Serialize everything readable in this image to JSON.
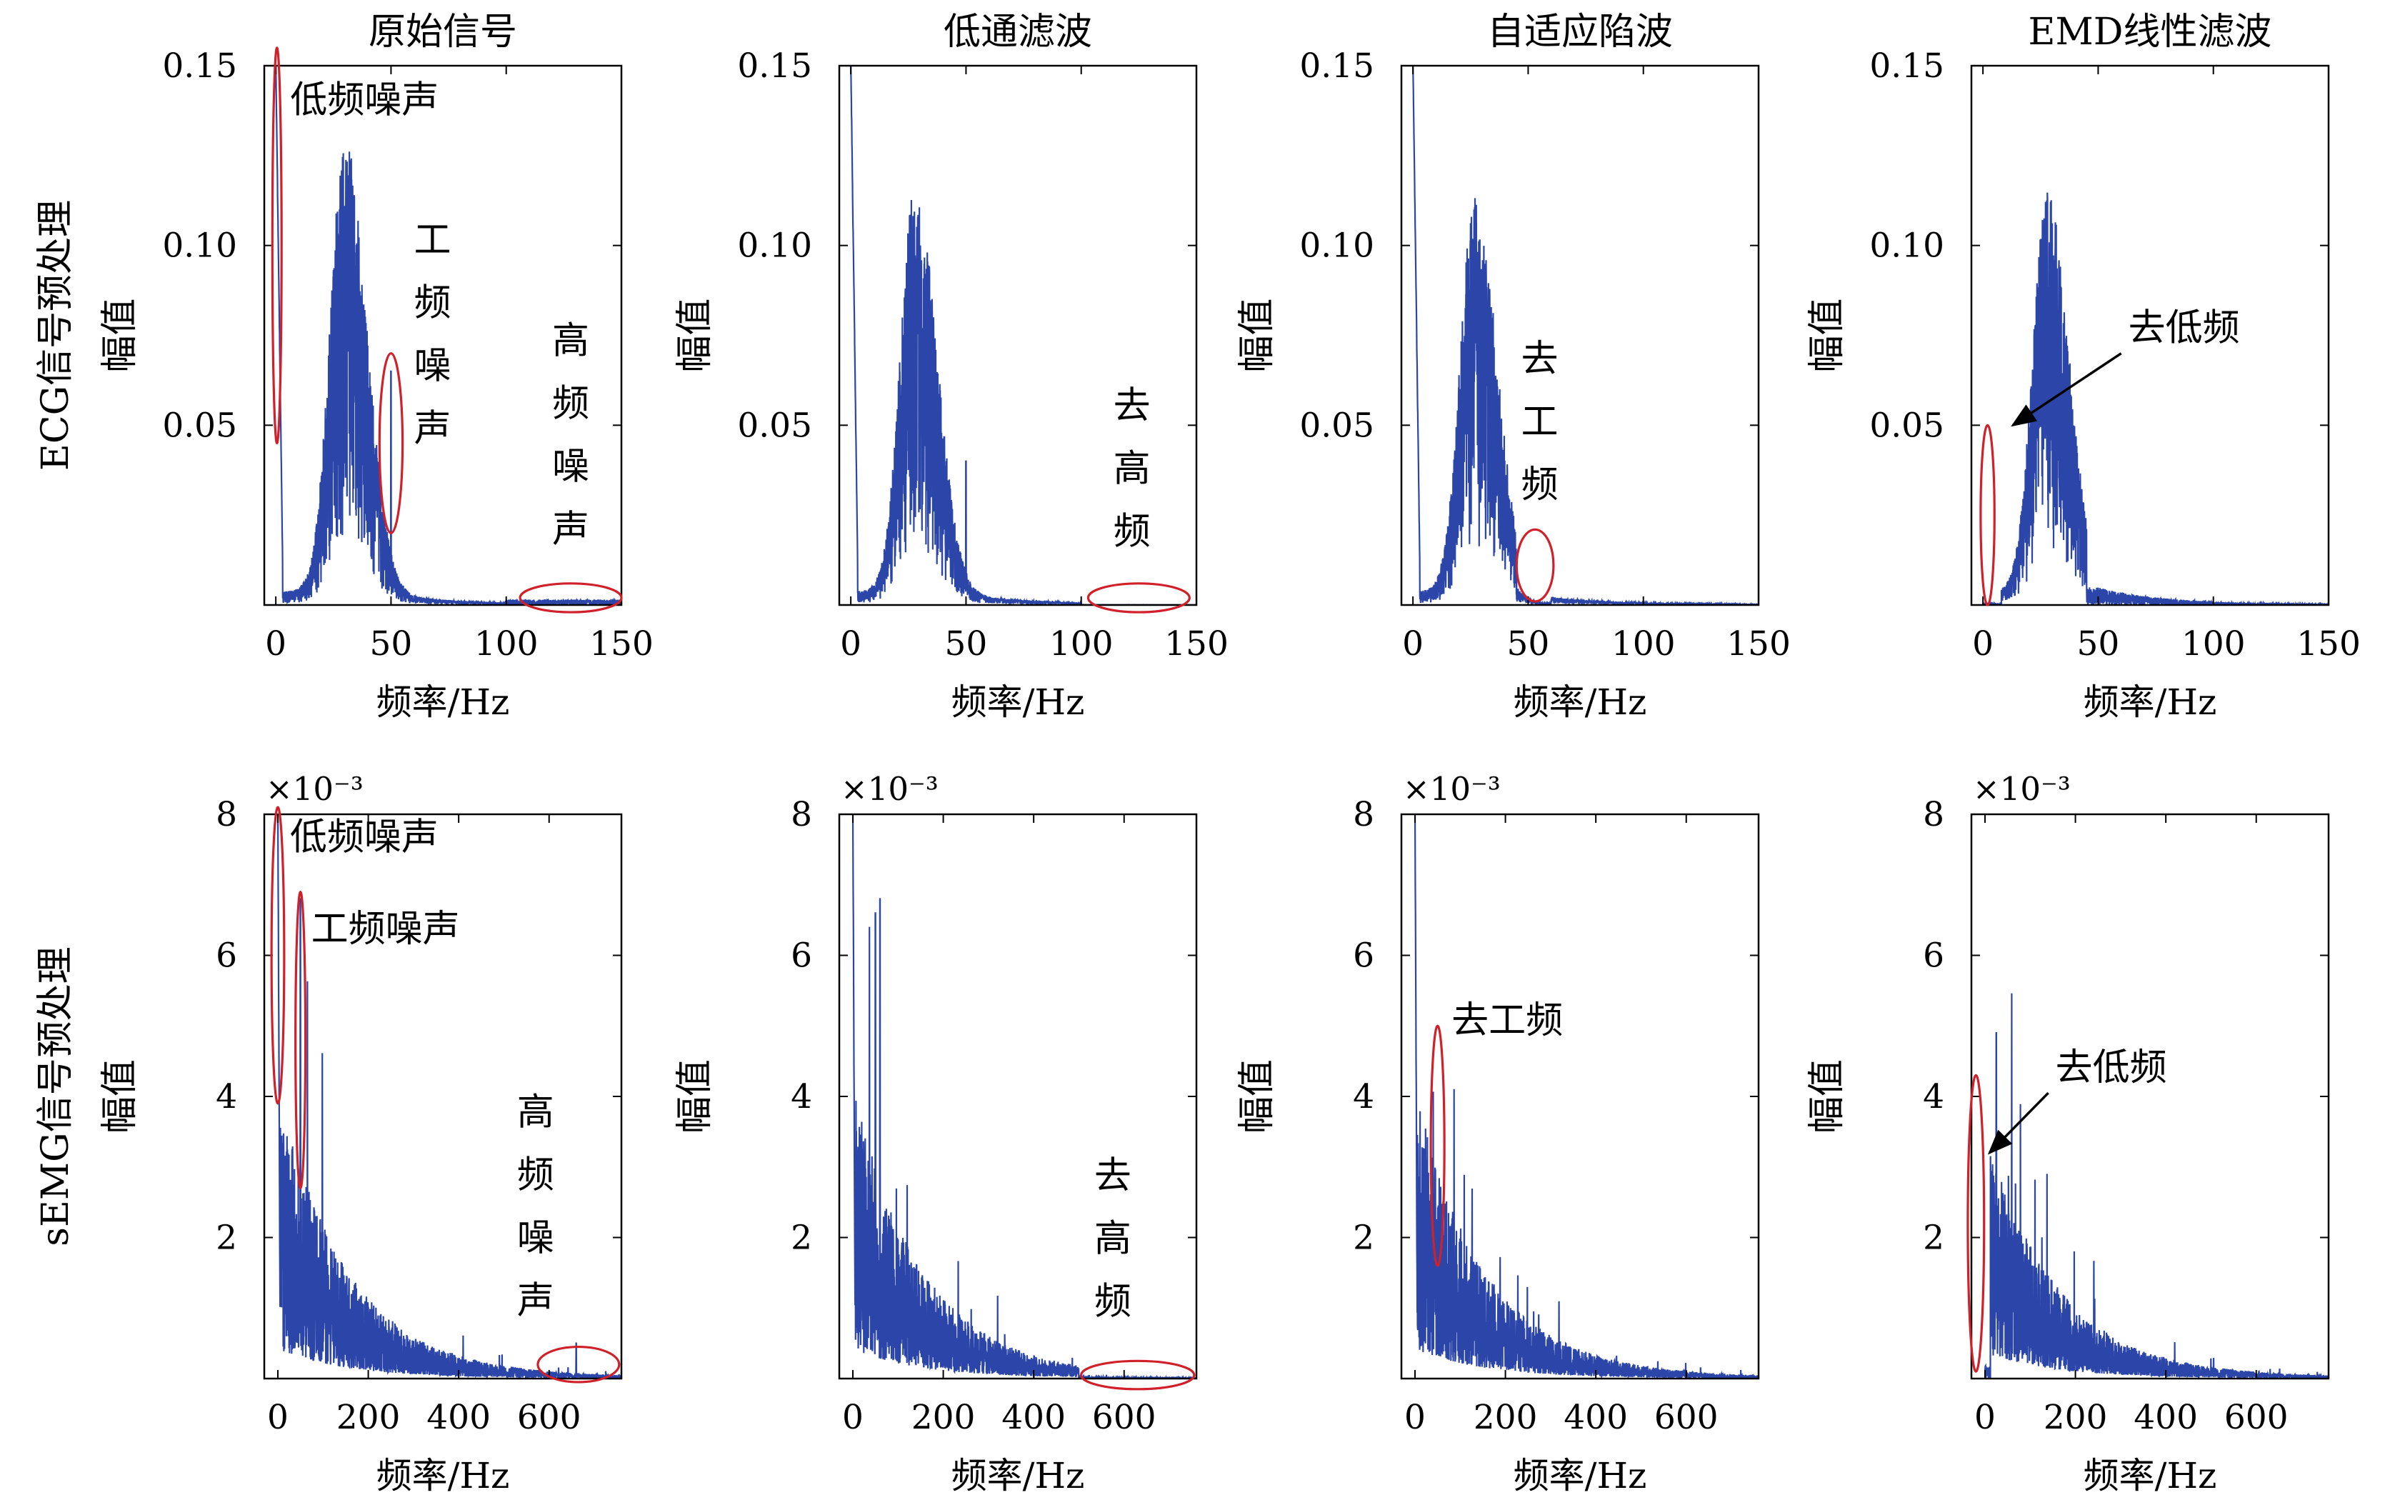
{
  "row_labels": [
    "ECG信号预处理",
    "sEMG信号预处理"
  ],
  "col_titles": [
    "原始信号",
    "低通滤波",
    "自适应陷波",
    "EMD线性滤波"
  ],
  "colors": {
    "signal": "#2b46a8",
    "annotation": "#d0202a",
    "axis": "#000000",
    "arrow": "#000000"
  },
  "chart_data": [
    {
      "type": "line",
      "row": 0,
      "col": 0,
      "title": "原始信号",
      "xlabel": "频率/Hz",
      "ylabel": "幅值",
      "xlim": [
        -5,
        150
      ],
      "ylim": [
        0,
        0.15
      ],
      "xticks": [
        0,
        50,
        100,
        150
      ],
      "yticks": [
        0.05,
        0.1,
        0.15
      ],
      "ytick_labels": [
        "0.05",
        "0.10",
        "0.15"
      ],
      "peak_hz": 30,
      "peak_amp": 0.125,
      "low_freq_amp": 0.15,
      "powerline_hz": 50,
      "powerline_amp": 0.065,
      "annotations": [
        {
          "kind": "ellipse",
          "text": "低频噪声",
          "cx": 0.5,
          "cy": 0.1,
          "rx": 2,
          "ry": 0.055
        },
        {
          "kind": "ellipse",
          "text": "工频噪声",
          "cx": 50,
          "cy": 0.045,
          "rx": 5,
          "ry": 0.025,
          "vertical": true
        },
        {
          "kind": "ellipse",
          "text": "高频噪声",
          "cx": 128,
          "cy": 0.002,
          "rx": 22,
          "ry": 0.004,
          "vertical": true
        }
      ]
    },
    {
      "type": "line",
      "row": 0,
      "col": 1,
      "title": "低通滤波",
      "xlabel": "频率/Hz",
      "ylabel": "幅值",
      "xlim": [
        -5,
        150
      ],
      "ylim": [
        0,
        0.15
      ],
      "xticks": [
        0,
        50,
        100,
        150
      ],
      "yticks": [
        0.05,
        0.1,
        0.15
      ],
      "ytick_labels": [
        "0.05",
        "0.10",
        "0.15"
      ],
      "peak_hz": 28,
      "peak_amp": 0.112,
      "low_freq_amp": 0.15,
      "powerline_hz": 50,
      "powerline_amp": 0.04,
      "annotations": [
        {
          "kind": "ellipse",
          "text": "去高频",
          "cx": 125,
          "cy": 0.002,
          "rx": 22,
          "ry": 0.004,
          "vertical": true
        }
      ]
    },
    {
      "type": "line",
      "row": 0,
      "col": 2,
      "title": "自适应陷波",
      "xlabel": "频率/Hz",
      "ylabel": "幅值",
      "xlim": [
        -5,
        150
      ],
      "ylim": [
        0,
        0.15
      ],
      "xticks": [
        0,
        50,
        100,
        150
      ],
      "yticks": [
        0.05,
        0.1,
        0.15
      ],
      "ytick_labels": [
        "0.05",
        "0.10",
        "0.15"
      ],
      "peak_hz": 27,
      "peak_amp": 0.11,
      "low_freq_amp": 0.15,
      "powerline_hz": null,
      "powerline_amp": 0,
      "annotations": [
        {
          "kind": "ellipse",
          "text": "去工频",
          "cx": 53,
          "cy": 0.011,
          "rx": 8,
          "ry": 0.01,
          "vertical": true
        }
      ]
    },
    {
      "type": "line",
      "row": 0,
      "col": 3,
      "title": "EMD线性滤波",
      "xlabel": "频率/Hz",
      "ylabel": "幅值",
      "xlim": [
        -5,
        150
      ],
      "ylim": [
        0,
        0.15
      ],
      "xticks": [
        0,
        50,
        100,
        150
      ],
      "yticks": [
        0.05,
        0.1,
        0.15
      ],
      "ytick_labels": [
        "0.05",
        "0.10",
        "0.15"
      ],
      "peak_hz": 28,
      "peak_amp": 0.11,
      "low_freq_amp": 0.0,
      "powerline_hz": null,
      "powerline_amp": 0,
      "annotations": [
        {
          "kind": "ellipse",
          "text": "",
          "cx": 2,
          "cy": 0.025,
          "rx": 3,
          "ry": 0.025
        },
        {
          "kind": "arrow",
          "text": "去低频",
          "x1": 60,
          "y1": 0.07,
          "x2": 13,
          "y2": 0.05
        }
      ]
    },
    {
      "type": "line",
      "row": 1,
      "col": 0,
      "title": "",
      "xlabel": "频率/Hz",
      "ylabel": "幅值",
      "xlim": [
        -30,
        760
      ],
      "ylim": [
        0,
        8
      ],
      "xticks": [
        0,
        200,
        400,
        600
      ],
      "yticks": [
        2,
        4,
        6,
        8
      ],
      "ytick_labels": [
        "2",
        "4",
        "6",
        "8"
      ],
      "y_exponent": "×10⁻³",
      "decay_start": 4,
      "low_freq_amp": 8,
      "powerline_hz": 50,
      "powerline_amp": 6.8,
      "spike_hz": 660,
      "spike_amp": 0.5,
      "annotations": [
        {
          "kind": "ellipse",
          "text": "低频噪声",
          "cx": 0,
          "cy": 6,
          "rx": 14,
          "ry": 2.1
        },
        {
          "kind": "ellipse",
          "text": "工频噪声",
          "cx": 50,
          "cy": 4.8,
          "rx": 11,
          "ry": 2.1
        },
        {
          "kind": "ellipse",
          "text": "高频噪声",
          "cx": 665,
          "cy": 0.2,
          "rx": 90,
          "ry": 0.25,
          "vertical": true
        }
      ]
    },
    {
      "type": "line",
      "row": 1,
      "col": 1,
      "title": "",
      "xlabel": "频率/Hz",
      "ylabel": "幅值",
      "xlim": [
        -30,
        760
      ],
      "ylim": [
        0,
        8
      ],
      "xticks": [
        0,
        200,
        400,
        600
      ],
      "yticks": [
        2,
        4,
        6,
        8
      ],
      "ytick_labels": [
        "2",
        "4",
        "6",
        "8"
      ],
      "y_exponent": "×10⁻³",
      "decay_start": 4,
      "low_freq_amp": 8,
      "powerline_hz": 50,
      "powerline_amp": 6.6,
      "spike_hz": null,
      "spike_amp": 0,
      "annotations": [
        {
          "kind": "ellipse",
          "text": "去高频",
          "cx": 630,
          "cy": 0.05,
          "rx": 125,
          "ry": 0.2,
          "vertical": true
        }
      ]
    },
    {
      "type": "line",
      "row": 1,
      "col": 2,
      "title": "",
      "xlabel": "频率/Hz",
      "ylabel": "幅值",
      "xlim": [
        -30,
        760
      ],
      "ylim": [
        0,
        8
      ],
      "xticks": [
        0,
        200,
        400,
        600
      ],
      "yticks": [
        2,
        4,
        6,
        8
      ],
      "ytick_labels": [
        "2",
        "4",
        "6",
        "8"
      ],
      "y_exponent": "×10⁻³",
      "decay_start": 4,
      "low_freq_amp": 8,
      "powerline_hz": null,
      "powerline_amp": 0,
      "spike_hz": null,
      "spike_amp": 0,
      "annotations": [
        {
          "kind": "ellipse",
          "text": "去工频",
          "cx": 50,
          "cy": 3.3,
          "rx": 15,
          "ry": 1.7
        }
      ]
    },
    {
      "type": "line",
      "row": 1,
      "col": 3,
      "title": "",
      "xlabel": "频率/Hz",
      "ylabel": "幅值",
      "xlim": [
        -30,
        760
      ],
      "ylim": [
        0,
        8
      ],
      "xticks": [
        0,
        200,
        400,
        600
      ],
      "yticks": [
        2,
        4,
        6,
        8
      ],
      "ytick_labels": [
        "2",
        "4",
        "6",
        "8"
      ],
      "y_exponent": "×10⁻³",
      "decay_start": 3.5,
      "low_freq_amp": 0,
      "powerline_hz": null,
      "powerline_amp": 0,
      "spike_hz": null,
      "spike_amp": 0,
      "annotations": [
        {
          "kind": "ellipse",
          "text": "",
          "cx": -20,
          "cy": 2.2,
          "rx": 18,
          "ry": 2.1
        },
        {
          "kind": "arrow",
          "text": "去低频",
          "x1": 140,
          "y1": 4.05,
          "x2": 10,
          "y2": 3.2
        }
      ]
    }
  ]
}
